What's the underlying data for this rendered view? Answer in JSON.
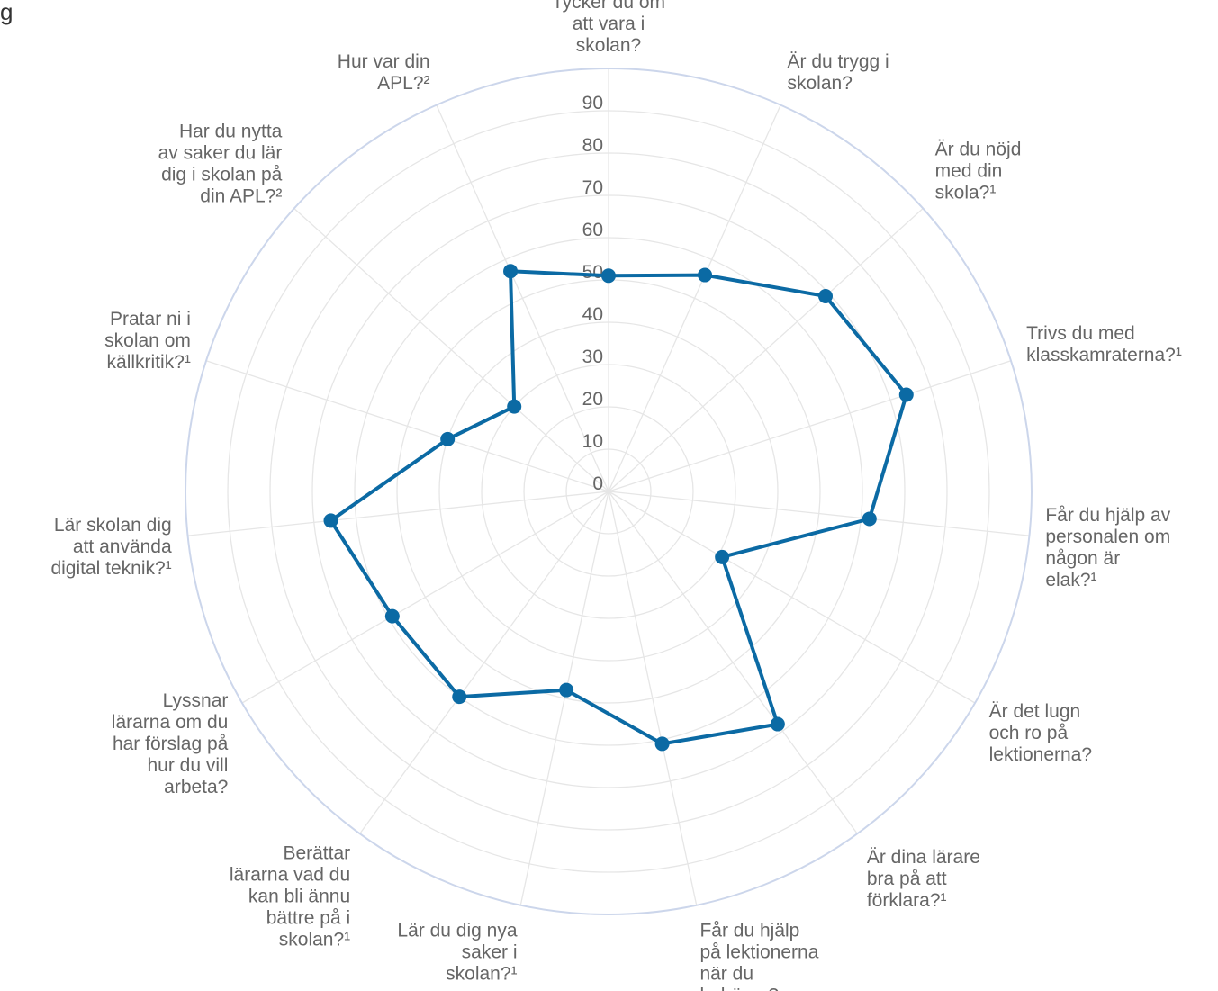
{
  "corner_text": "g",
  "chart_data": {
    "type": "radar",
    "title": "",
    "rlim": [
      0,
      100
    ],
    "ticks": [
      "0",
      "10",
      "20",
      "30",
      "40",
      "50",
      "60",
      "70",
      "80",
      "90"
    ],
    "categories": [
      "Tycker du om att vara i skolan?",
      "Är du trygg i skolan?",
      "Är du nöjd med din skola?¹",
      "Trivs du med klasskamraterna?¹",
      "Får du hjälp av personalen om någon är elak?¹",
      "Är det lugn och ro på lektionerna?",
      "Är dina lärare bra på att förklara?¹",
      "Får du hjälp på lektionerna när du behöver?",
      "Lär du dig nya saker i skolan?¹",
      "Berättar lärarna vad du kan bli ännu bättre på i skolan?¹",
      "Lyssnar lärarna om du har förslag på hur du vill arbeta?",
      "Lär skolan dig att använda digital teknik?¹",
      "Pratar ni i skolan om källkritik?¹",
      "Har du nytta av saker du lär dig i skolan på din APL?²",
      "Hur var din APL?²"
    ],
    "category_lines": [
      [
        "Tycker du om",
        "att vara i",
        "skolan?"
      ],
      [
        "Är du trygg i",
        "skolan?"
      ],
      [
        "Är du nöjd",
        "med din",
        "skola?¹"
      ],
      [
        "Trivs du med",
        "klasskamraterna?¹"
      ],
      [
        "Får du hjälp av",
        "personalen om",
        "någon är",
        "elak?¹"
      ],
      [
        "Är det lugn",
        "och ro på",
        "lektionerna?"
      ],
      [
        "Är dina lärare",
        "bra på att",
        "förklara?¹"
      ],
      [
        "Får du hjälp",
        "på lektionerna",
        "när du",
        "behöver?"
      ],
      [
        "Lär du dig nya",
        "saker i",
        "skolan?¹"
      ],
      [
        "Berättar",
        "lärarna vad du",
        "kan bli ännu",
        "bättre på i",
        "skolan?¹"
      ],
      [
        "Lyssnar",
        "lärarna om du",
        "har förslag på",
        "hur du vill",
        "arbeta?"
      ],
      [
        "Lär skolan dig",
        "att använda",
        "digital teknik?¹"
      ],
      [
        "Pratar ni i",
        "skolan om",
        "källkritik?¹"
      ],
      [
        "Har du nytta",
        "av saker du lär",
        "dig i skolan på",
        "din APL?²"
      ],
      [
        "Hur var din",
        "APL?²"
      ]
    ],
    "series": [
      {
        "color": "#0b6aa4",
        "values": [
          51,
          56,
          69,
          74,
          62,
          31,
          68,
          61,
          48,
          60,
          59,
          66,
          40,
          30,
          57
        ]
      }
    ],
    "grid": true,
    "legend": "none"
  }
}
